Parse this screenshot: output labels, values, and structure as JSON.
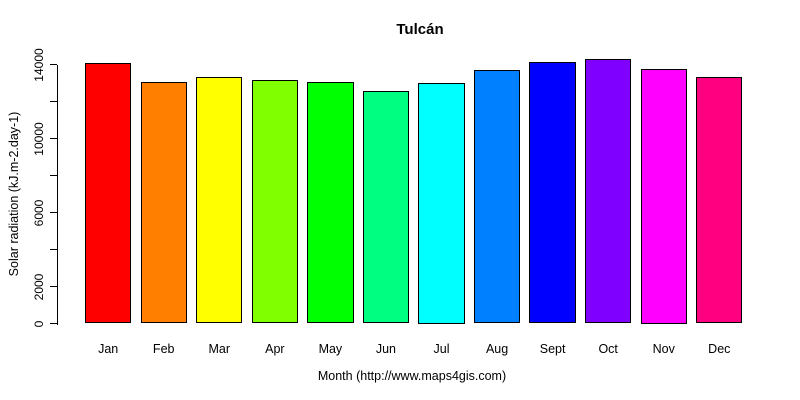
{
  "title": "Tulcán",
  "chart_data": {
    "type": "bar",
    "title": "Tulcán",
    "xlabel": "Month (http://www.maps4gis.com)",
    "ylabel": "Solar radiation (kJ.m-2.day-1)",
    "categories": [
      "Jan",
      "Feb",
      "Mar",
      "Apr",
      "May",
      "Jun",
      "Jul",
      "Aug",
      "Sept",
      "Oct",
      "Nov",
      "Dec"
    ],
    "values": [
      14100,
      13050,
      13300,
      13150,
      13050,
      12550,
      13000,
      13700,
      14150,
      14300,
      13750,
      13300
    ],
    "bar_colors": [
      "#FF0000",
      "#FF8000",
      "#FFFF00",
      "#80FF00",
      "#00FF00",
      "#00FF80",
      "#00FFFF",
      "#0080FF",
      "#0000FF",
      "#8000FF",
      "#FF00FF",
      "#FF0080"
    ],
    "bar_border_color": "#000000",
    "background_color": "#FFFFFF",
    "ylim": [
      0,
      14400
    ],
    "yticks": [
      0,
      2000,
      4000,
      6000,
      8000,
      10000,
      12000,
      14000
    ],
    "ytick_labels": [
      "0",
      "2000",
      "",
      "6000",
      "",
      "10000",
      "",
      "14000"
    ],
    "grid": false,
    "legend": null
  }
}
